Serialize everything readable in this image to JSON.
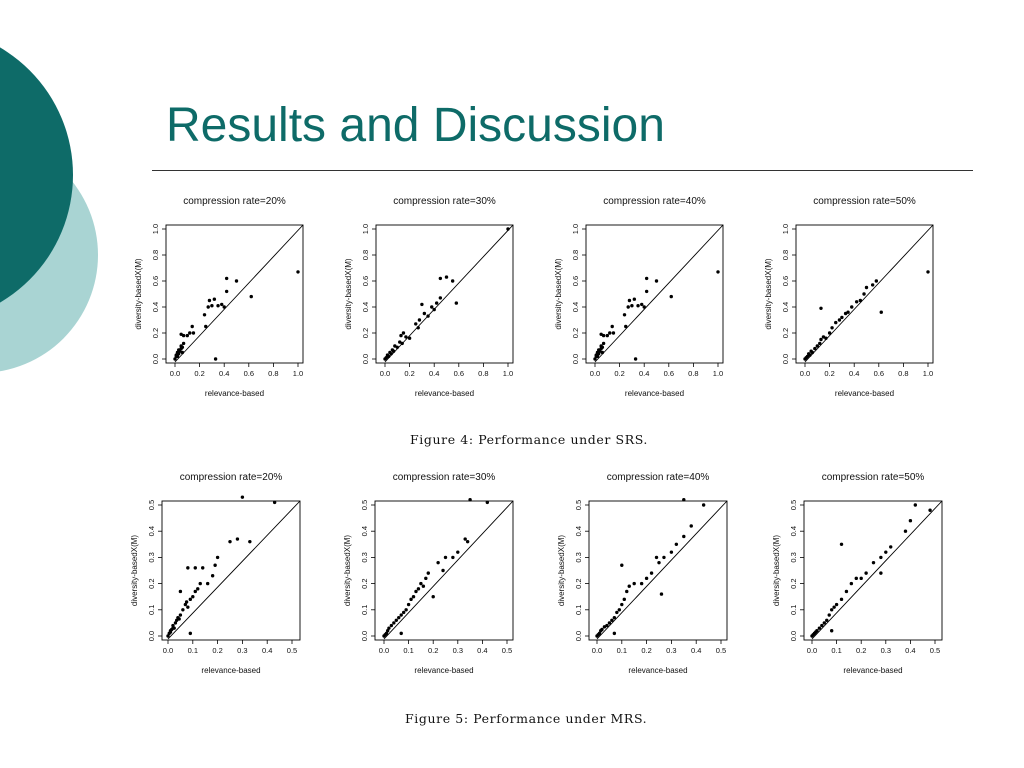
{
  "slide": {
    "title": "Results and Discussion",
    "colors": {
      "title": "#0e6b68",
      "dark_circle": "#0e6b68",
      "light_circle": "#a9d4d3"
    }
  },
  "figures": [
    {
      "caption": "Figure 4: Performance under SRS."
    },
    {
      "caption": "Figure 5: Performance under MRS."
    }
  ],
  "chart_data": [
    {
      "type": "scatter",
      "figure": 4,
      "title": "compression rate=20%",
      "xlabel": "relevance-based",
      "ylabel": "diversity-basedX(M)",
      "xlim": [
        0,
        1.0
      ],
      "ylim": [
        0,
        1.0
      ],
      "xticks": [
        "0.0",
        "0.2",
        "0.4",
        "0.6",
        "0.8",
        "1.0"
      ],
      "yticks": [
        "0.0",
        "0.2",
        "0.4",
        "0.6",
        "0.8",
        "1.0"
      ],
      "reference_line": "y=x",
      "points": [
        [
          0.0,
          0.0
        ],
        [
          0.01,
          0.02
        ],
        [
          0.01,
          0.03
        ],
        [
          0.02,
          0.02
        ],
        [
          0.02,
          0.05
        ],
        [
          0.03,
          0.04
        ],
        [
          0.03,
          0.07
        ],
        [
          0.04,
          0.06
        ],
        [
          0.05,
          0.08
        ],
        [
          0.05,
          0.1
        ],
        [
          0.06,
          0.05
        ],
        [
          0.06,
          0.09
        ],
        [
          0.07,
          0.12
        ],
        [
          0.05,
          0.19
        ],
        [
          0.07,
          0.18
        ],
        [
          0.1,
          0.18
        ],
        [
          0.12,
          0.2
        ],
        [
          0.15,
          0.2
        ],
        [
          0.14,
          0.25
        ],
        [
          0.25,
          0.25
        ],
        [
          0.24,
          0.34
        ],
        [
          0.27,
          0.4
        ],
        [
          0.28,
          0.45
        ],
        [
          0.3,
          0.41
        ],
        [
          0.32,
          0.46
        ],
        [
          0.35,
          0.41
        ],
        [
          0.38,
          0.42
        ],
        [
          0.4,
          0.4
        ],
        [
          0.42,
          0.62
        ],
        [
          0.42,
          0.52
        ],
        [
          0.5,
          0.6
        ],
        [
          0.62,
          0.48
        ],
        [
          0.33,
          0.0
        ],
        [
          1.0,
          0.67
        ]
      ]
    },
    {
      "type": "scatter",
      "figure": 4,
      "title": "compression rate=30%",
      "xlabel": "relevance-based",
      "ylabel": "diversity-basedX(M)",
      "xlim": [
        0,
        1.0
      ],
      "ylim": [
        0,
        1.0
      ],
      "xticks": [
        "0.0",
        "0.2",
        "0.4",
        "0.6",
        "0.8",
        "1.0"
      ],
      "yticks": [
        "0.0",
        "0.2",
        "0.4",
        "0.6",
        "0.8",
        "1.0"
      ],
      "reference_line": "y=x",
      "points": [
        [
          0.0,
          0.0
        ],
        [
          0.01,
          0.01
        ],
        [
          0.02,
          0.03
        ],
        [
          0.03,
          0.02
        ],
        [
          0.04,
          0.05
        ],
        [
          0.05,
          0.04
        ],
        [
          0.06,
          0.07
        ],
        [
          0.07,
          0.06
        ],
        [
          0.08,
          0.1
        ],
        [
          0.1,
          0.09
        ],
        [
          0.12,
          0.13
        ],
        [
          0.14,
          0.12
        ],
        [
          0.13,
          0.18
        ],
        [
          0.15,
          0.2
        ],
        [
          0.17,
          0.17
        ],
        [
          0.2,
          0.16
        ],
        [
          0.25,
          0.27
        ],
        [
          0.27,
          0.24
        ],
        [
          0.28,
          0.3
        ],
        [
          0.3,
          0.42
        ],
        [
          0.32,
          0.35
        ],
        [
          0.35,
          0.33
        ],
        [
          0.38,
          0.4
        ],
        [
          0.4,
          0.38
        ],
        [
          0.42,
          0.43
        ],
        [
          0.45,
          0.47
        ],
        [
          0.45,
          0.62
        ],
        [
          0.5,
          0.63
        ],
        [
          0.55,
          0.6
        ],
        [
          0.58,
          0.43
        ],
        [
          1.0,
          1.0
        ]
      ]
    },
    {
      "type": "scatter",
      "figure": 4,
      "title": "compression rate=40%",
      "xlabel": "relevance-based",
      "ylabel": "diversity-basedX(M)",
      "xlim": [
        0,
        1.0
      ],
      "ylim": [
        0,
        1.0
      ],
      "xticks": [
        "0.0",
        "0.2",
        "0.4",
        "0.6",
        "0.8",
        "1.0"
      ],
      "yticks": [
        "0.0",
        "0.2",
        "0.4",
        "0.6",
        "0.8",
        "1.0"
      ],
      "reference_line": "y=x",
      "points": [
        [
          0.0,
          0.0
        ],
        [
          0.01,
          0.02
        ],
        [
          0.01,
          0.03
        ],
        [
          0.02,
          0.02
        ],
        [
          0.02,
          0.05
        ],
        [
          0.03,
          0.04
        ],
        [
          0.03,
          0.07
        ],
        [
          0.04,
          0.06
        ],
        [
          0.05,
          0.08
        ],
        [
          0.05,
          0.1
        ],
        [
          0.06,
          0.05
        ],
        [
          0.06,
          0.09
        ],
        [
          0.07,
          0.12
        ],
        [
          0.05,
          0.19
        ],
        [
          0.07,
          0.18
        ],
        [
          0.1,
          0.18
        ],
        [
          0.12,
          0.2
        ],
        [
          0.15,
          0.2
        ],
        [
          0.14,
          0.25
        ],
        [
          0.25,
          0.25
        ],
        [
          0.24,
          0.34
        ],
        [
          0.27,
          0.4
        ],
        [
          0.28,
          0.45
        ],
        [
          0.3,
          0.41
        ],
        [
          0.32,
          0.46
        ],
        [
          0.35,
          0.41
        ],
        [
          0.38,
          0.42
        ],
        [
          0.4,
          0.4
        ],
        [
          0.42,
          0.62
        ],
        [
          0.42,
          0.52
        ],
        [
          0.5,
          0.6
        ],
        [
          0.62,
          0.48
        ],
        [
          0.33,
          0.0
        ],
        [
          1.0,
          0.67
        ]
      ]
    },
    {
      "type": "scatter",
      "figure": 4,
      "title": "compression rate=50%",
      "xlabel": "relevance-based",
      "ylabel": "diversity-basedX(M)",
      "xlim": [
        0,
        1.0
      ],
      "ylim": [
        0,
        1.0
      ],
      "xticks": [
        "0.0",
        "0.2",
        "0.4",
        "0.6",
        "0.8",
        "1.0"
      ],
      "yticks": [
        "0.0",
        "0.2",
        "0.4",
        "0.6",
        "0.8",
        "1.0"
      ],
      "reference_line": "y=x",
      "points": [
        [
          0.0,
          0.0
        ],
        [
          0.01,
          0.01
        ],
        [
          0.02,
          0.02
        ],
        [
          0.03,
          0.04
        ],
        [
          0.04,
          0.03
        ],
        [
          0.05,
          0.06
        ],
        [
          0.06,
          0.05
        ],
        [
          0.08,
          0.08
        ],
        [
          0.1,
          0.1
        ],
        [
          0.12,
          0.12
        ],
        [
          0.13,
          0.15
        ],
        [
          0.15,
          0.17
        ],
        [
          0.17,
          0.16
        ],
        [
          0.2,
          0.2
        ],
        [
          0.22,
          0.24
        ],
        [
          0.25,
          0.28
        ],
        [
          0.28,
          0.3
        ],
        [
          0.3,
          0.32
        ],
        [
          0.33,
          0.35
        ],
        [
          0.35,
          0.36
        ],
        [
          0.38,
          0.4
        ],
        [
          0.42,
          0.44
        ],
        [
          0.45,
          0.45
        ],
        [
          0.48,
          0.5
        ],
        [
          0.5,
          0.55
        ],
        [
          0.55,
          0.57
        ],
        [
          0.58,
          0.6
        ],
        [
          0.13,
          0.39
        ],
        [
          0.62,
          0.36
        ],
        [
          1.0,
          0.67
        ]
      ]
    },
    {
      "type": "scatter",
      "figure": 5,
      "title": "compression rate=20%",
      "xlabel": "relevance-based",
      "ylabel": "diversity-basedX(M)",
      "xlim": [
        0,
        0.5
      ],
      "ylim": [
        0,
        0.5
      ],
      "xticks": [
        "0.0",
        "0.1",
        "0.2",
        "0.3",
        "0.4",
        "0.5"
      ],
      "yticks": [
        "0.0",
        "0.1",
        "0.2",
        "0.3",
        "0.4",
        "0.5"
      ],
      "reference_line": "y=x",
      "points": [
        [
          0.0,
          0.0
        ],
        [
          0.005,
          0.01
        ],
        [
          0.01,
          0.015
        ],
        [
          0.01,
          0.02
        ],
        [
          0.015,
          0.025
        ],
        [
          0.02,
          0.03
        ],
        [
          0.02,
          0.04
        ],
        [
          0.025,
          0.03
        ],
        [
          0.03,
          0.05
        ],
        [
          0.035,
          0.06
        ],
        [
          0.04,
          0.07
        ],
        [
          0.045,
          0.065
        ],
        [
          0.05,
          0.08
        ],
        [
          0.06,
          0.1
        ],
        [
          0.07,
          0.12
        ],
        [
          0.075,
          0.13
        ],
        [
          0.08,
          0.11
        ],
        [
          0.09,
          0.14
        ],
        [
          0.1,
          0.15
        ],
        [
          0.11,
          0.17
        ],
        [
          0.12,
          0.18
        ],
        [
          0.13,
          0.2
        ],
        [
          0.05,
          0.17
        ],
        [
          0.08,
          0.26
        ],
        [
          0.11,
          0.26
        ],
        [
          0.14,
          0.26
        ],
        [
          0.16,
          0.2
        ],
        [
          0.18,
          0.23
        ],
        [
          0.19,
          0.27
        ],
        [
          0.2,
          0.3
        ],
        [
          0.25,
          0.36
        ],
        [
          0.28,
          0.37
        ],
        [
          0.33,
          0.36
        ],
        [
          0.3,
          0.53
        ],
        [
          0.43,
          0.51
        ],
        [
          0.09,
          0.01
        ]
      ]
    },
    {
      "type": "scatter",
      "figure": 5,
      "title": "compression rate=30%",
      "xlabel": "relevance-based",
      "ylabel": "diversity-basedX(M)",
      "xlim": [
        0,
        0.5
      ],
      "ylim": [
        0,
        0.5
      ],
      "xticks": [
        "0.0",
        "0.1",
        "0.2",
        "0.3",
        "0.4",
        "0.5"
      ],
      "yticks": [
        "0.0",
        "0.1",
        "0.2",
        "0.3",
        "0.4",
        "0.5"
      ],
      "reference_line": "y=x",
      "points": [
        [
          0.0,
          0.0
        ],
        [
          0.005,
          0.005
        ],
        [
          0.01,
          0.01
        ],
        [
          0.015,
          0.02
        ],
        [
          0.02,
          0.03
        ],
        [
          0.03,
          0.04
        ],
        [
          0.04,
          0.05
        ],
        [
          0.05,
          0.06
        ],
        [
          0.06,
          0.07
        ],
        [
          0.07,
          0.08
        ],
        [
          0.08,
          0.09
        ],
        [
          0.09,
          0.1
        ],
        [
          0.1,
          0.12
        ],
        [
          0.11,
          0.14
        ],
        [
          0.12,
          0.15
        ],
        [
          0.13,
          0.17
        ],
        [
          0.14,
          0.18
        ],
        [
          0.15,
          0.2
        ],
        [
          0.16,
          0.19
        ],
        [
          0.17,
          0.22
        ],
        [
          0.18,
          0.24
        ],
        [
          0.2,
          0.15
        ],
        [
          0.22,
          0.28
        ],
        [
          0.24,
          0.25
        ],
        [
          0.25,
          0.3
        ],
        [
          0.28,
          0.3
        ],
        [
          0.3,
          0.32
        ],
        [
          0.33,
          0.37
        ],
        [
          0.34,
          0.36
        ],
        [
          0.35,
          0.52
        ],
        [
          0.42,
          0.51
        ],
        [
          0.07,
          0.01
        ]
      ]
    },
    {
      "type": "scatter",
      "figure": 5,
      "title": "compression rate=40%",
      "xlabel": "relevance-based",
      "ylabel": "diversity-basedX(M)",
      "xlim": [
        0,
        0.5
      ],
      "ylim": [
        0,
        0.5
      ],
      "xticks": [
        "0.0",
        "0.1",
        "0.2",
        "0.3",
        "0.4",
        "0.5"
      ],
      "yticks": [
        "0.0",
        "0.1",
        "0.2",
        "0.3",
        "0.4",
        "0.5"
      ],
      "reference_line": "y=x",
      "points": [
        [
          0.0,
          0.0
        ],
        [
          0.005,
          0.005
        ],
        [
          0.01,
          0.01
        ],
        [
          0.015,
          0.02
        ],
        [
          0.02,
          0.025
        ],
        [
          0.03,
          0.035
        ],
        [
          0.04,
          0.04
        ],
        [
          0.05,
          0.05
        ],
        [
          0.06,
          0.06
        ],
        [
          0.07,
          0.07
        ],
        [
          0.08,
          0.09
        ],
        [
          0.09,
          0.1
        ],
        [
          0.1,
          0.12
        ],
        [
          0.11,
          0.14
        ],
        [
          0.12,
          0.17
        ],
        [
          0.13,
          0.19
        ],
        [
          0.15,
          0.2
        ],
        [
          0.18,
          0.2
        ],
        [
          0.2,
          0.22
        ],
        [
          0.22,
          0.24
        ],
        [
          0.24,
          0.3
        ],
        [
          0.25,
          0.28
        ],
        [
          0.27,
          0.3
        ],
        [
          0.3,
          0.32
        ],
        [
          0.32,
          0.35
        ],
        [
          0.35,
          0.38
        ],
        [
          0.38,
          0.42
        ],
        [
          0.35,
          0.52
        ],
        [
          0.43,
          0.5
        ],
        [
          0.1,
          0.27
        ],
        [
          0.26,
          0.16
        ],
        [
          0.07,
          0.01
        ]
      ]
    },
    {
      "type": "scatter",
      "figure": 5,
      "title": "compression rate=50%",
      "xlabel": "relevance-based",
      "ylabel": "diversity-basedX(M)",
      "xlim": [
        0,
        0.5
      ],
      "ylim": [
        0,
        0.5
      ],
      "xticks": [
        "0.0",
        "0.1",
        "0.2",
        "0.3",
        "0.4",
        "0.5"
      ],
      "yticks": [
        "0.0",
        "0.1",
        "0.2",
        "0.3",
        "0.4",
        "0.5"
      ],
      "reference_line": "y=x",
      "points": [
        [
          0.0,
          0.0
        ],
        [
          0.005,
          0.005
        ],
        [
          0.01,
          0.01
        ],
        [
          0.015,
          0.015
        ],
        [
          0.02,
          0.02
        ],
        [
          0.03,
          0.03
        ],
        [
          0.04,
          0.04
        ],
        [
          0.05,
          0.05
        ],
        [
          0.06,
          0.06
        ],
        [
          0.07,
          0.08
        ],
        [
          0.08,
          0.1
        ],
        [
          0.09,
          0.11
        ],
        [
          0.1,
          0.12
        ],
        [
          0.12,
          0.14
        ],
        [
          0.14,
          0.17
        ],
        [
          0.16,
          0.2
        ],
        [
          0.18,
          0.22
        ],
        [
          0.2,
          0.22
        ],
        [
          0.22,
          0.24
        ],
        [
          0.25,
          0.28
        ],
        [
          0.28,
          0.3
        ],
        [
          0.3,
          0.32
        ],
        [
          0.32,
          0.34
        ],
        [
          0.38,
          0.4
        ],
        [
          0.4,
          0.44
        ],
        [
          0.42,
          0.5
        ],
        [
          0.48,
          0.48
        ],
        [
          0.12,
          0.35
        ],
        [
          0.28,
          0.24
        ],
        [
          0.08,
          0.02
        ]
      ]
    }
  ]
}
